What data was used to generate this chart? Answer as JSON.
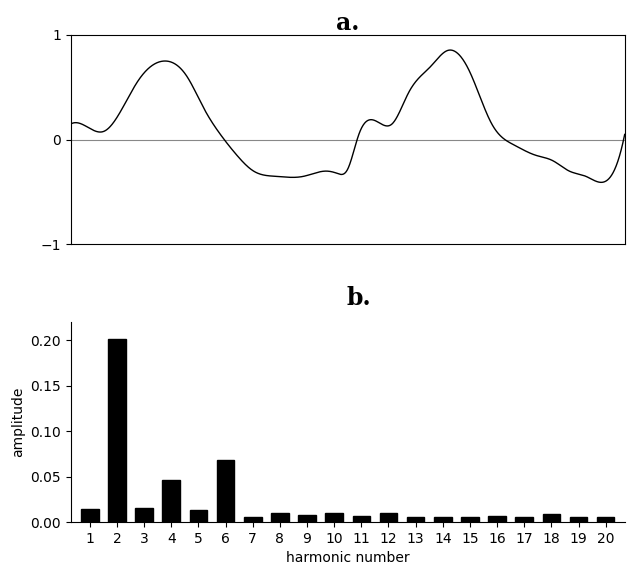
{
  "title_a": "a.",
  "title_b": "b.",
  "bar_amplitudes": [
    0.014,
    0.202,
    0.015,
    0.046,
    0.013,
    0.068,
    0.006,
    0.01,
    0.008,
    0.01,
    0.007,
    0.01,
    0.006,
    0.005,
    0.005,
    0.007,
    0.005,
    0.009,
    0.005,
    0.005
  ],
  "bar_color": "#000000",
  "xlabel_b": "harmonic number",
  "ylabel_b": "amplitude",
  "ylim_b": [
    0,
    0.22
  ],
  "yticks_b": [
    0.0,
    0.05,
    0.1,
    0.15,
    0.2
  ],
  "ylim_a": [
    -1,
    1
  ],
  "yticks_a": [
    -1,
    0,
    1
  ],
  "line_color": "#000000",
  "zero_line_color": "#888888",
  "background_color": "#ffffff",
  "title_fontsize": 17,
  "label_fontsize": 10,
  "tick_fontsize": 10,
  "waveform_keypoints_x": [
    0.0,
    0.03,
    0.06,
    0.12,
    0.17,
    0.21,
    0.24,
    0.27,
    0.3,
    0.33,
    0.37,
    0.42,
    0.46,
    0.48,
    0.5,
    0.52,
    0.55,
    0.58,
    0.61,
    0.65,
    0.68,
    0.72,
    0.76,
    0.8,
    0.84,
    0.87,
    0.9,
    0.93,
    0.97,
    1.0
  ],
  "waveform_keypoints_y": [
    0.15,
    0.12,
    0.08,
    0.55,
    0.75,
    0.6,
    0.3,
    0.05,
    -0.15,
    -0.3,
    -0.35,
    -0.35,
    -0.3,
    -0.32,
    -0.28,
    0.05,
    0.18,
    0.15,
    0.45,
    0.7,
    0.85,
    0.65,
    0.15,
    -0.05,
    -0.15,
    -0.2,
    -0.3,
    -0.35,
    -0.38,
    0.05
  ]
}
